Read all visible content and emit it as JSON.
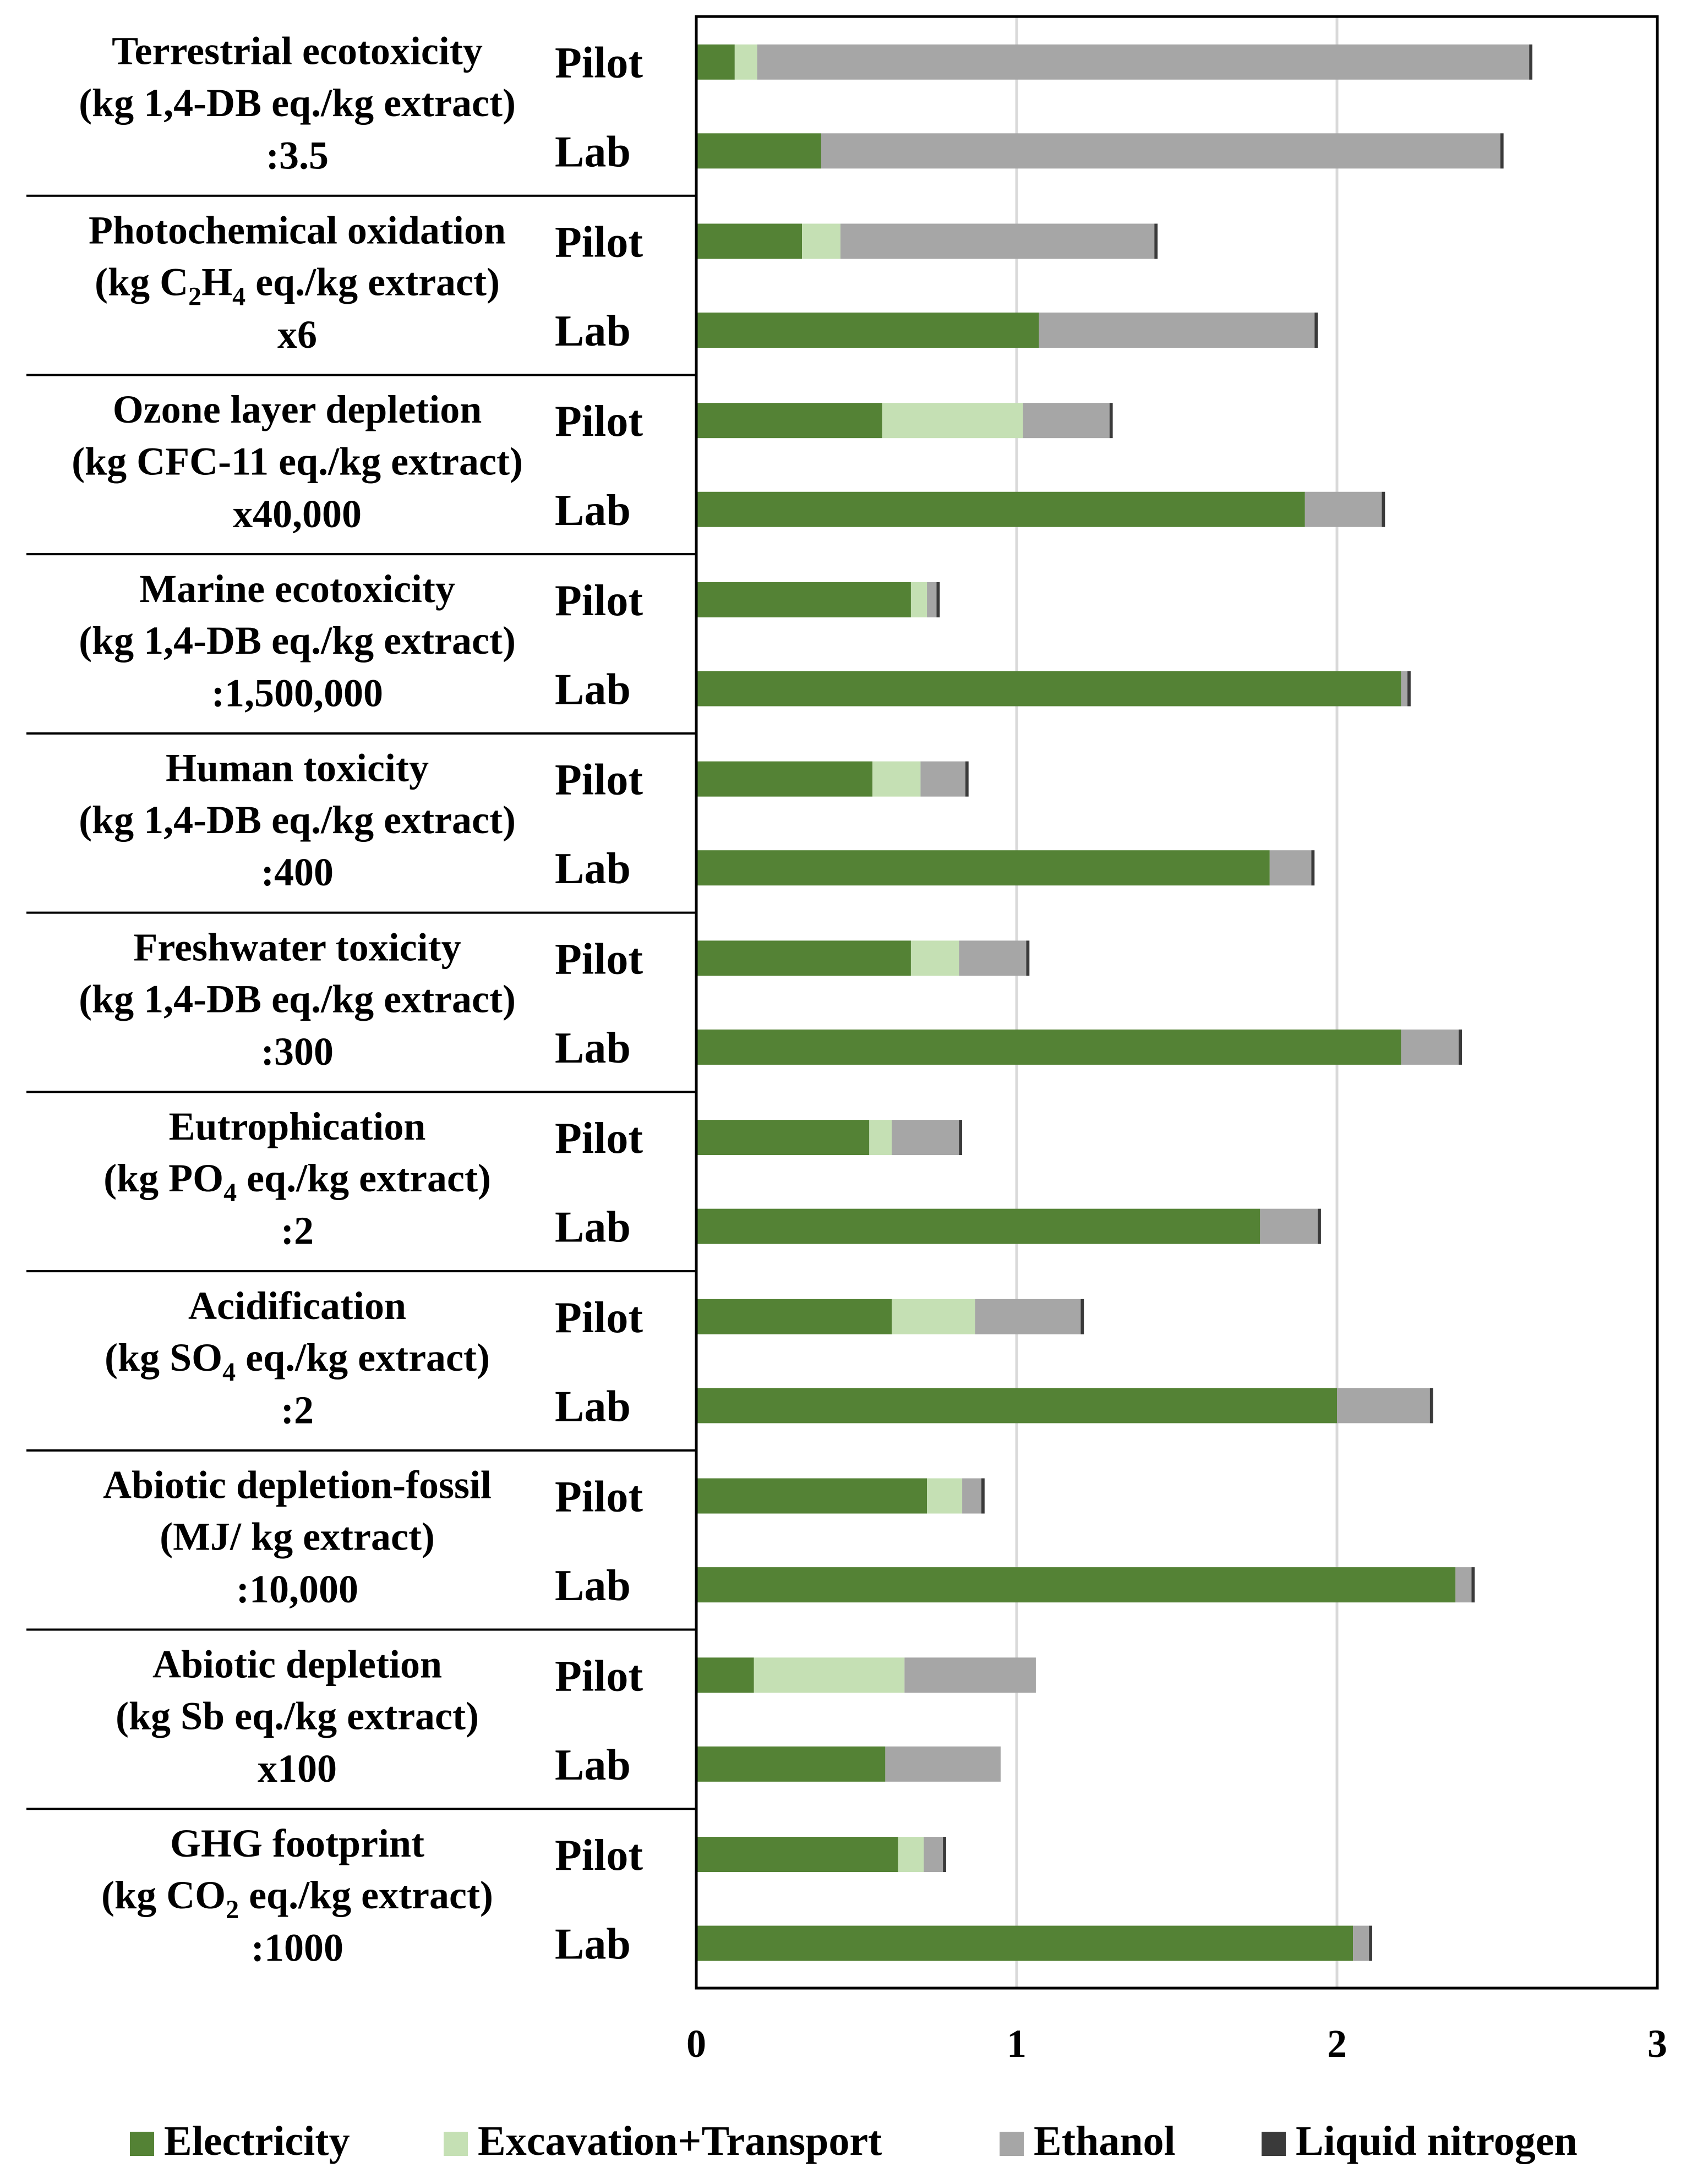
{
  "chart_data": {
    "type": "bar",
    "orientation": "horizontal",
    "stacked": true,
    "xlim": [
      0,
      3
    ],
    "x_ticks": [
      "0",
      "1",
      "2",
      "3"
    ],
    "grid": "vertical",
    "legend_position": "bottom",
    "series_names": [
      "Electricity",
      "Excavation+Transport",
      "Ethanol",
      "Liquid nitrogen"
    ],
    "colors": {
      "Electricity": "#548235",
      "Excavation+Transport": "#c5e0b4",
      "Ethanol": "#a6a6a6",
      "Liquid nitrogen": "#3a3a3a",
      "grid": "#d9d9d9",
      "axis": "#000000"
    },
    "categories": [
      {
        "lines": [
          "Terrestrial ecotoxicity",
          "(kg 1,4-DB eq./kg extract)",
          ":3.5"
        ],
        "rows": [
          {
            "label": "Pilot",
            "values": [
              0.12,
              0.07,
              2.41,
              0.01
            ]
          },
          {
            "label": "Lab",
            "values": [
              0.39,
              0.0,
              2.12,
              0.01
            ]
          }
        ]
      },
      {
        "lines": [
          "Photochemical oxidation",
          "(kg C2H4 eq./kg extract)",
          "x6"
        ],
        "rows": [
          {
            "label": "Pilot",
            "values": [
              0.33,
              0.12,
              0.98,
              0.01
            ]
          },
          {
            "label": "Lab",
            "values": [
              1.07,
              0.0,
              0.86,
              0.01
            ]
          }
        ]
      },
      {
        "lines": [
          "Ozone layer depletion",
          "(kg CFC-11 eq./kg extract)",
          "x40,000"
        ],
        "rows": [
          {
            "label": "Pilot",
            "values": [
              0.58,
              0.44,
              0.27,
              0.01
            ]
          },
          {
            "label": "Lab",
            "values": [
              1.9,
              0.0,
              0.24,
              0.01
            ]
          }
        ]
      },
      {
        "lines": [
          "Marine ecotoxicity",
          "(kg 1,4-DB eq./kg extract)",
          ":1,500,000"
        ],
        "rows": [
          {
            "label": "Pilot",
            "values": [
              0.67,
              0.05,
              0.03,
              0.01
            ]
          },
          {
            "label": "Lab",
            "values": [
              2.2,
              0.0,
              0.02,
              0.01
            ]
          }
        ]
      },
      {
        "lines": [
          "Human toxicity",
          "(kg 1,4-DB eq./kg extract)",
          ":400"
        ],
        "rows": [
          {
            "label": "Pilot",
            "values": [
              0.55,
              0.15,
              0.14,
              0.01
            ]
          },
          {
            "label": "Lab",
            "values": [
              1.79,
              0.0,
              0.13,
              0.01
            ]
          }
        ]
      },
      {
        "lines": [
          "Freshwater toxicity",
          "(kg 1,4-DB eq./kg extract)",
          ":300"
        ],
        "rows": [
          {
            "label": "Pilot",
            "values": [
              0.67,
              0.15,
              0.21,
              0.01
            ]
          },
          {
            "label": "Lab",
            "values": [
              2.2,
              0.0,
              0.18,
              0.01
            ]
          }
        ]
      },
      {
        "lines": [
          "Eutrophication",
          "(kg PO4 eq./kg extract)",
          ":2"
        ],
        "rows": [
          {
            "label": "Pilot",
            "values": [
              0.54,
              0.07,
              0.21,
              0.01
            ]
          },
          {
            "label": "Lab",
            "values": [
              1.76,
              0.0,
              0.18,
              0.01
            ]
          }
        ]
      },
      {
        "lines": [
          "Acidification",
          "(kg SO4 eq./kg extract)",
          ":2"
        ],
        "rows": [
          {
            "label": "Pilot",
            "values": [
              0.61,
              0.26,
              0.33,
              0.01
            ]
          },
          {
            "label": "Lab",
            "values": [
              2.0,
              0.0,
              0.29,
              0.01
            ]
          }
        ]
      },
      {
        "lines": [
          "Abiotic depletion-fossil",
          "(MJ/ kg extract)",
          ":10,000"
        ],
        "rows": [
          {
            "label": "Pilot",
            "values": [
              0.72,
              0.11,
              0.06,
              0.01
            ]
          },
          {
            "label": "Lab",
            "values": [
              2.37,
              0.0,
              0.05,
              0.01
            ]
          }
        ]
      },
      {
        "lines": [
          "Abiotic depletion",
          "(kg Sb eq./kg extract)",
          "x100"
        ],
        "rows": [
          {
            "label": "Pilot",
            "values": [
              0.18,
              0.47,
              0.41,
              0.0
            ]
          },
          {
            "label": "Lab",
            "values": [
              0.59,
              0.0,
              0.36,
              0.0
            ]
          }
        ]
      },
      {
        "lines": [
          "GHG footprint",
          "(kg CO2 eq./kg extract)",
          ":1000"
        ],
        "rows": [
          {
            "label": "Pilot",
            "values": [
              0.63,
              0.08,
              0.06,
              0.01
            ]
          },
          {
            "label": "Lab",
            "values": [
              2.05,
              0.0,
              0.05,
              0.01
            ]
          }
        ]
      }
    ]
  }
}
